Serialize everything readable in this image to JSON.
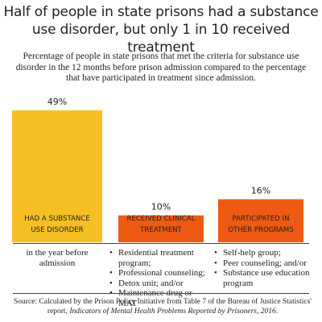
{
  "title": "Half of people in state prisons had a substance use disorder, but only 1 in 10 received treatment",
  "subtitle": "Percentage of people in state prisons that met the criteria for substance use disorder in the 12 months before prison admission compared to the percentage that have participated in treatment since admission.",
  "colors": {
    "bar_primary": "#F6C025",
    "bar_secondary": "#EE5A12",
    "text": "#222222",
    "rule": "#444444"
  },
  "chart_data": {
    "type": "bar",
    "categories": [
      "HAD A SUBSTANCE USE DISORDER",
      "RECEIVED CLINICAL TREATMENT",
      "PARTICIPATED IN OTHER PROGRAMS"
    ],
    "values": [
      49,
      10,
      16
    ],
    "value_labels": [
      "49%",
      "10%",
      "16%"
    ],
    "unit": "%",
    "ylim": [
      0,
      55
    ],
    "grid": false,
    "legend": "none"
  },
  "descriptions": {
    "first": "in the year before admission",
    "clinical": [
      "Residential treatment program;",
      "Professional counseling;",
      "Detox unit; and/or",
      "Maintenance drug or MAT"
    ],
    "other": [
      "Self-help group;",
      "Peer counseling; and/or",
      "Substance use education program"
    ]
  },
  "source": {
    "prefix": "Source: Calculated by the Prison Policy Initiative from Table 7 of the Bureau of Justice Statistics' report,",
    "report": "Indicators of Mental Health Problems Reported by Prisoners, 2016",
    "suffix": "."
  }
}
